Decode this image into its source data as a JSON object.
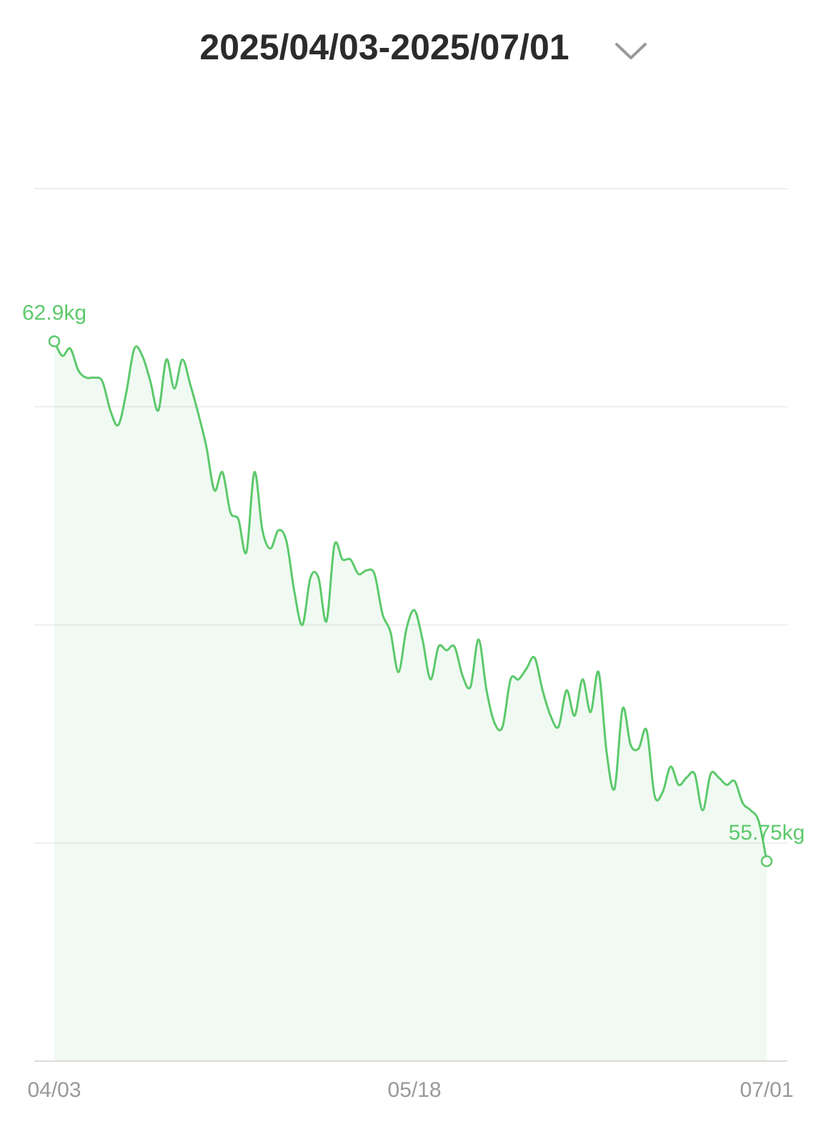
{
  "chart_data": {
    "type": "line",
    "title": "2025/04/03-2025/07/01",
    "categories": [
      "04/03",
      null,
      null,
      null,
      null,
      null,
      null,
      null,
      null,
      null,
      null,
      null,
      null,
      null,
      null,
      null,
      null,
      null,
      null,
      null,
      null,
      null,
      null,
      null,
      null,
      null,
      null,
      null,
      null,
      null,
      null,
      null,
      null,
      null,
      null,
      null,
      null,
      null,
      null,
      null,
      null,
      null,
      null,
      null,
      null,
      "05/18",
      null,
      null,
      null,
      null,
      null,
      null,
      null,
      null,
      null,
      null,
      null,
      null,
      null,
      null,
      null,
      null,
      null,
      null,
      null,
      null,
      null,
      null,
      null,
      null,
      null,
      null,
      null,
      null,
      null,
      null,
      null,
      null,
      null,
      null,
      null,
      null,
      null,
      null,
      null,
      null,
      null,
      null,
      null,
      "07/01"
    ],
    "values": [
      62.9,
      62.7,
      62.8,
      62.5,
      62.4,
      62.4,
      62.35,
      61.95,
      61.75,
      62.2,
      62.8,
      62.7,
      62.35,
      61.95,
      62.65,
      62.25,
      62.65,
      62.3,
      61.9,
      61.45,
      60.85,
      61.1,
      60.55,
      60.45,
      60.0,
      61.1,
      60.3,
      60.05,
      60.3,
      60.15,
      59.45,
      59.0,
      59.65,
      59.65,
      59.05,
      60.1,
      59.9,
      59.9,
      59.7,
      59.75,
      59.7,
      59.15,
      58.9,
      58.35,
      58.95,
      59.2,
      58.8,
      58.25,
      58.7,
      58.65,
      58.7,
      58.3,
      58.15,
      58.8,
      58.1,
      57.65,
      57.6,
      58.25,
      58.25,
      58.4,
      58.55,
      58.1,
      57.75,
      57.6,
      58.1,
      57.75,
      58.25,
      57.8,
      58.35,
      57.25,
      56.75,
      57.85,
      57.35,
      57.3,
      57.55,
      56.65,
      56.7,
      57.05,
      56.8,
      56.9,
      56.95,
      56.45,
      56.95,
      56.9,
      56.8,
      56.85,
      56.55,
      56.45,
      56.3,
      55.75
    ],
    "value_labels": [
      "62.9kg",
      null,
      null,
      null,
      null,
      null,
      null,
      null,
      null,
      null,
      null,
      null,
      null,
      null,
      null,
      null,
      null,
      null,
      null,
      null,
      null,
      null,
      null,
      null,
      null,
      null,
      null,
      null,
      null,
      null,
      null,
      null,
      null,
      null,
      null,
      null,
      null,
      null,
      null,
      null,
      null,
      null,
      null,
      null,
      null,
      null,
      null,
      null,
      null,
      null,
      null,
      null,
      null,
      null,
      null,
      null,
      null,
      null,
      null,
      null,
      null,
      null,
      null,
      null,
      null,
      null,
      null,
      null,
      null,
      null,
      null,
      null,
      null,
      null,
      null,
      null,
      null,
      null,
      null,
      null,
      null,
      null,
      null,
      null,
      null,
      null,
      null,
      null,
      null,
      "55.75kg"
    ],
    "color": "#5cc96b",
    "ylim": [
      53,
      65
    ],
    "yticks": [
      53,
      56,
      59,
      62,
      65
    ],
    "grid": true
  }
}
